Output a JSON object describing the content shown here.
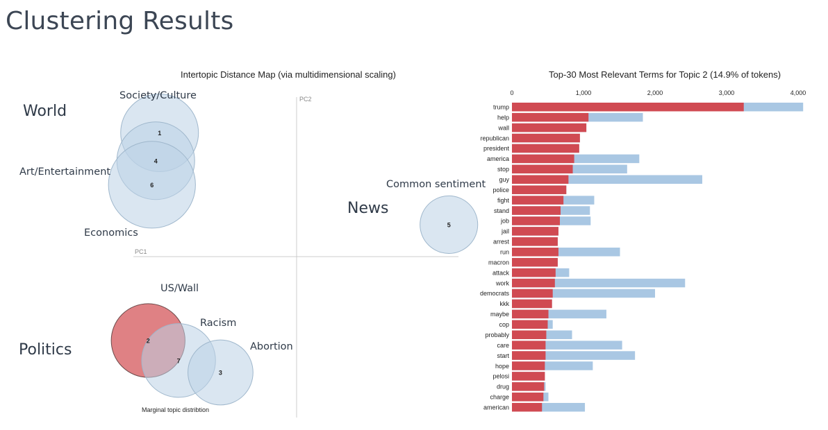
{
  "page": {
    "title": "Clustering Results"
  },
  "colors": {
    "background": "#ffffff",
    "circle_fill": "#bcd2e6",
    "circle_selected": "#d96b6f",
    "bar_overall": "#a9c7e3",
    "bar_topic": "#d04a52",
    "axis": "#cccccc"
  },
  "annotations": [
    {
      "text": "World",
      "size": "big"
    },
    {
      "text": "Society/Culture",
      "size": "small"
    },
    {
      "text": "Art/Entertainment",
      "size": "small"
    },
    {
      "text": "Economics",
      "size": "small"
    },
    {
      "text": "Common sentiment",
      "size": "small"
    },
    {
      "text": "News",
      "size": "big"
    },
    {
      "text": "US/Wall",
      "size": "small"
    },
    {
      "text": "Racism",
      "size": "small"
    },
    {
      "text": "Abortion",
      "size": "small"
    },
    {
      "text": "Politics",
      "size": "big"
    }
  ],
  "chart_data": [
    {
      "type": "scatter",
      "title": "Intertopic Distance Map (via multidimensional scaling)",
      "xlabel": "PC1",
      "ylabel": "PC2",
      "footer": "Marginal topic distribtion",
      "selected_topic": "2",
      "topics": [
        {
          "id": "1",
          "pc1": -0.36,
          "pc2": 0.31,
          "size": 1.0
        },
        {
          "id": "4",
          "pc1": -0.37,
          "pc2": 0.24,
          "size": 1.0
        },
        {
          "id": "6",
          "pc1": -0.38,
          "pc2": 0.18,
          "size": 1.25
        },
        {
          "id": "5",
          "pc1": 0.4,
          "pc2": 0.08,
          "size": 0.55
        },
        {
          "id": "2",
          "pc1": -0.39,
          "pc2": -0.21,
          "size": 0.9
        },
        {
          "id": "7",
          "pc1": -0.31,
          "pc2": -0.26,
          "size": 0.9
        },
        {
          "id": "3",
          "pc1": -0.2,
          "pc2": -0.29,
          "size": 0.7
        }
      ]
    },
    {
      "type": "bar",
      "orientation": "horizontal",
      "title": "Top-30 Most Relevant Terms for Topic 2 (14.9% of tokens)",
      "xlim": [
        0,
        4000
      ],
      "xticks": [
        "0",
        "1,000",
        "2,000",
        "3,000",
        "4,000"
      ],
      "categories": [
        "trump",
        "help",
        "wall",
        "republican",
        "president",
        "america",
        "stop",
        "guy",
        "police",
        "fight",
        "stand",
        "job",
        "jail",
        "arrest",
        "run",
        "macron",
        "attack",
        "work",
        "democrats",
        "kkk",
        "maybe",
        "cop",
        "probably",
        "care",
        "start",
        "hope",
        "pelosi",
        "drug",
        "charge",
        "american"
      ],
      "series": [
        {
          "values": [
            4070,
            1830,
            1040,
            950,
            940,
            1780,
            1610,
            2660,
            760,
            1150,
            1090,
            1100,
            650,
            640,
            1510,
            640,
            800,
            2420,
            2000,
            560,
            1320,
            570,
            840,
            1540,
            1720,
            1130,
            460,
            470,
            510,
            1020
          ]
        },
        {
          "values": [
            3240,
            1070,
            1040,
            950,
            940,
            870,
            850,
            790,
            760,
            720,
            680,
            670,
            650,
            640,
            650,
            640,
            610,
            600,
            570,
            560,
            510,
            500,
            480,
            470,
            470,
            460,
            460,
            450,
            440,
            420
          ]
        }
      ]
    }
  ]
}
